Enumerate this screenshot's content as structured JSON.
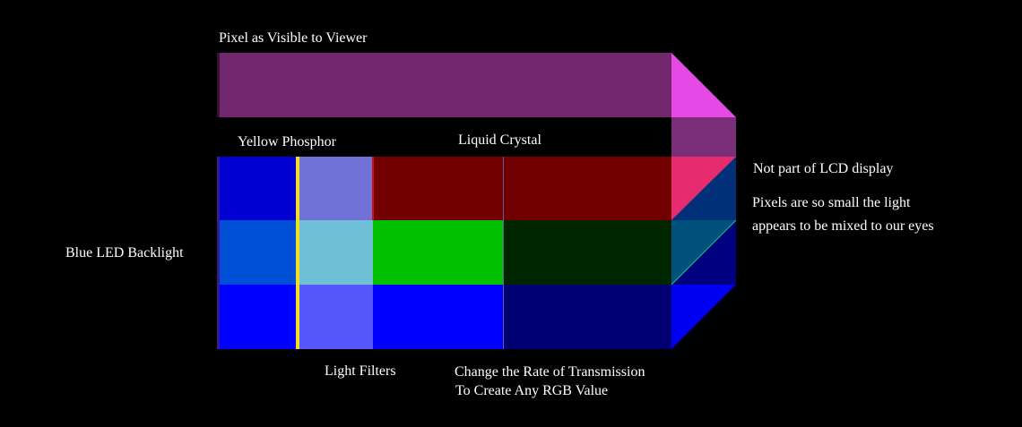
{
  "labels": {
    "pixel_as_visible": "Pixel as Visible to Viewer",
    "yellow_phosphor": "Yellow Phosphor",
    "liquid_crystal": "Liquid Crystal",
    "not_part_of_lcd": "Not part of LCD display",
    "pixels_small_line1": "Pixels are so small the light",
    "pixels_small_line2": "appears to be mixed to our eyes",
    "blue_led_backlight": "Blue LED Backlight",
    "light_filters": "Light Filters",
    "change_rate_line1": "Change the Rate of Transmission",
    "change_rate_line2": "To Create Any RGB Value"
  },
  "colors": {
    "background": "#000000",
    "viewer_pixel": "#72276f",
    "viewer_pixel_face": "#e44ae6",
    "viewer_pixel_side": "#7a2e79",
    "red_row_backlight": "#0000d2",
    "green_row_backlight": "#004fd6",
    "blue_row_backlight": "#0000ff",
    "red_row_phosphor": "#7271d5",
    "green_row_phosphor": "#6fbfd6",
    "blue_row_phosphor": "#5757fe",
    "red_filter": "#720000",
    "green_filter": "#00c000",
    "blue_filter": "#0000ff",
    "red_crystal": "#720000",
    "green_crystal": "#002600",
    "blue_crystal": "#000073",
    "yellow_layer": "#f0e020",
    "red_side_face": "#e62b6e",
    "green_side_face": "#00527d",
    "blue_side_face": "#0000f0",
    "side_dark_top": "#003078",
    "side_dark_mid": "#000080",
    "side_dark_bottom": "#000070"
  }
}
